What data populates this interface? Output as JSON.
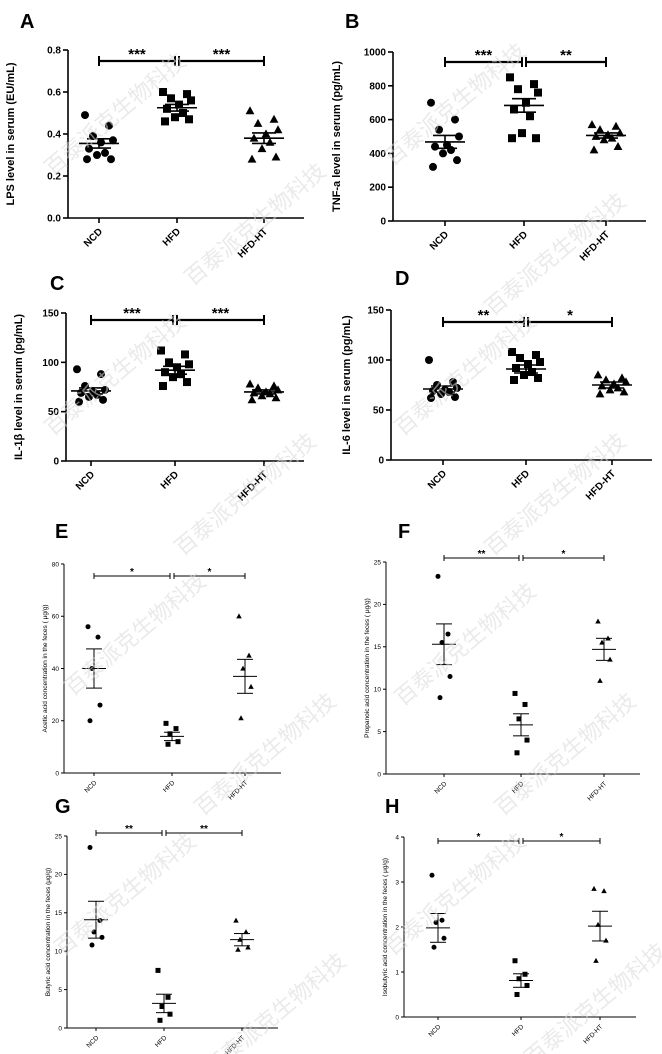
{
  "figure": {
    "watermark": "百泰派克生物科技"
  },
  "colors": {
    "ink": "#000000",
    "watermark": "#d8d8d8"
  },
  "chart_data": [
    {
      "panel": "A",
      "type": "scatter",
      "ylabel": "LPS level in serum (EU/mL)",
      "categories": [
        "NCD",
        "HFD",
        "HFD-HT"
      ],
      "ylim": [
        0,
        0.8
      ],
      "yticks": [
        0.0,
        0.2,
        0.4,
        0.6,
        0.8
      ],
      "ytick_labels": [
        "0.0",
        "0.2",
        "0.4",
        "0.6",
        "0.8"
      ],
      "markers": [
        "circle",
        "square",
        "triangle"
      ],
      "points": [
        [
          0.49,
          0.44,
          0.39,
          0.37,
          0.36,
          0.33,
          0.31,
          0.3,
          0.28,
          0.28
        ],
        [
          0.6,
          0.59,
          0.57,
          0.56,
          0.54,
          0.52,
          0.5,
          0.48,
          0.47,
          0.46
        ],
        [
          0.51,
          0.47,
          0.45,
          0.42,
          0.4,
          0.38,
          0.36,
          0.33,
          0.29,
          0.28
        ]
      ],
      "mean": [
        0.355,
        0.525,
        0.38
      ],
      "sem": [
        0.022,
        0.016,
        0.025
      ],
      "comparisons": [
        {
          "from": 0,
          "to": 1,
          "label": "***"
        },
        {
          "from": 1,
          "to": 2,
          "label": "***"
        }
      ]
    },
    {
      "panel": "B",
      "type": "scatter",
      "ylabel": "TNF-a level in serum (pg/mL)",
      "categories": [
        "NCD",
        "HFD",
        "HFD-HT"
      ],
      "ylim": [
        0,
        1000
      ],
      "yticks": [
        0,
        200,
        400,
        600,
        800,
        1000
      ],
      "ytick_labels": [
        "0",
        "200",
        "400",
        "600",
        "800",
        "1000"
      ],
      "markers": [
        "circle",
        "square",
        "triangle"
      ],
      "points": [
        [
          700,
          600,
          540,
          500,
          450,
          440,
          420,
          400,
          360,
          320
        ],
        [
          850,
          810,
          780,
          760,
          700,
          660,
          620,
          520,
          490,
          490
        ],
        [
          570,
          560,
          540,
          520,
          510,
          500,
          490,
          480,
          440,
          420
        ]
      ],
      "mean": [
        468,
        684,
        506
      ],
      "sem": [
        38,
        40,
        15
      ],
      "comparisons": [
        {
          "from": 0,
          "to": 1,
          "label": "***"
        },
        {
          "from": 1,
          "to": 2,
          "label": "**"
        }
      ]
    },
    {
      "panel": "C",
      "type": "scatter",
      "ylabel": "IL-1β level in serum (pg/mL)",
      "categories": [
        "NCD",
        "HFD",
        "HFD-HT"
      ],
      "ylim": [
        0,
        150
      ],
      "yticks": [
        0,
        50,
        100,
        150
      ],
      "ytick_labels": [
        "0",
        "50",
        "100",
        "150"
      ],
      "markers": [
        "circle",
        "square",
        "triangle"
      ],
      "points": [
        [
          93,
          88,
          76,
          72,
          71,
          69,
          67,
          65,
          62,
          60
        ],
        [
          112,
          108,
          100,
          98,
          95,
          90,
          88,
          85,
          80,
          76
        ],
        [
          78,
          76,
          74,
          72,
          70,
          69,
          68,
          66,
          64,
          62
        ]
      ],
      "mean": [
        71,
        92,
        70
      ],
      "sem": [
        3,
        4,
        2
      ],
      "comparisons": [
        {
          "from": 0,
          "to": 1,
          "label": "***"
        },
        {
          "from": 1,
          "to": 2,
          "label": "***"
        }
      ]
    },
    {
      "panel": "D",
      "type": "scatter",
      "ylabel": "IL-6 level in serum (pg/mL)",
      "categories": [
        "NCD",
        "HFD",
        "HFD-HT"
      ],
      "ylim": [
        0,
        150
      ],
      "yticks": [
        0,
        50,
        100,
        150
      ],
      "ytick_labels": [
        "0",
        "50",
        "100",
        "150"
      ],
      "markers": [
        "circle",
        "square",
        "triangle"
      ],
      "points": [
        [
          100,
          78,
          75,
          72,
          70,
          69,
          68,
          66,
          63,
          62
        ],
        [
          108,
          105,
          102,
          98,
          96,
          92,
          88,
          85,
          82,
          80
        ],
        [
          85,
          82,
          80,
          78,
          76,
          74,
          72,
          70,
          68,
          66
        ]
      ],
      "mean": [
        71,
        91,
        75
      ],
      "sem": [
        3,
        4,
        3
      ],
      "comparisons": [
        {
          "from": 0,
          "to": 1,
          "label": "**"
        },
        {
          "from": 1,
          "to": 2,
          "label": "*"
        }
      ]
    },
    {
      "panel": "E",
      "type": "scatter",
      "ylabel": "Acetic acid concentration in the feces ( μg/g)",
      "categories": [
        "NCD",
        "HFD",
        "HFD-HT"
      ],
      "ylim": [
        0,
        80
      ],
      "yticks": [
        0,
        20,
        40,
        60,
        80
      ],
      "ytick_labels": [
        "0",
        "20",
        "40",
        "60",
        "80"
      ],
      "markers": [
        "circle",
        "square",
        "triangle"
      ],
      "points": [
        [
          56,
          52,
          40,
          26,
          20
        ],
        [
          19,
          17,
          15,
          12,
          11
        ],
        [
          60,
          45,
          40,
          33,
          21
        ]
      ],
      "mean": [
        40,
        14,
        37
      ],
      "sem": [
        7.5,
        1.6,
        6.5
      ],
      "comparisons": [
        {
          "from": 0,
          "to": 1,
          "label": "*"
        },
        {
          "from": 1,
          "to": 2,
          "label": "*"
        }
      ]
    },
    {
      "panel": "F",
      "type": "scatter",
      "ylabel": "Propanoic acid concentration in the feces ( μg/g)",
      "categories": [
        "NCD",
        "HFD",
        "HFD-HT"
      ],
      "ylim": [
        0,
        25
      ],
      "yticks": [
        0,
        5,
        10,
        15,
        20,
        25
      ],
      "ytick_labels": [
        "0",
        "5",
        "10",
        "15",
        "20",
        "25"
      ],
      "markers": [
        "circle",
        "square",
        "triangle"
      ],
      "points": [
        [
          23.3,
          16.5,
          15.5,
          11.5,
          9.0
        ],
        [
          9.5,
          8.2,
          6.5,
          4.0,
          2.5
        ],
        [
          18.0,
          16.0,
          15.5,
          13.5,
          11.0
        ]
      ],
      "mean": [
        15.3,
        5.8,
        14.7
      ],
      "sem": [
        2.4,
        1.3,
        1.3
      ],
      "comparisons": [
        {
          "from": 0,
          "to": 1,
          "label": "**"
        },
        {
          "from": 1,
          "to": 2,
          "label": "*"
        }
      ]
    },
    {
      "panel": "G",
      "type": "scatter",
      "ylabel": "Butyric acid concentration in the feces (μg/g)",
      "categories": [
        "NCD",
        "HFD",
        "HFD-HT"
      ],
      "ylim": [
        0,
        25
      ],
      "yticks": [
        0,
        5,
        10,
        15,
        20,
        25
      ],
      "ytick_labels": [
        "0",
        "5",
        "10",
        "15",
        "20",
        "25"
      ],
      "markers": [
        "circle",
        "square",
        "triangle"
      ],
      "points": [
        [
          23.5,
          14.0,
          12.5,
          11.8,
          10.8
        ],
        [
          7.5,
          4.0,
          2.8,
          1.8,
          1.0
        ],
        [
          14.0,
          12.5,
          11.5,
          10.5,
          10.2
        ]
      ],
      "mean": [
        14.1,
        3.2,
        11.5
      ],
      "sem": [
        2.4,
        1.2,
        0.8
      ],
      "comparisons": [
        {
          "from": 0,
          "to": 1,
          "label": "**"
        },
        {
          "from": 1,
          "to": 2,
          "label": "**"
        }
      ]
    },
    {
      "panel": "H",
      "type": "scatter",
      "ylabel": "Isobutyric acid concentration in the feces ( μg/g)",
      "categories": [
        "NCD",
        "HFD",
        "HFD-HT"
      ],
      "ylim": [
        0,
        4
      ],
      "yticks": [
        0,
        1,
        2,
        3,
        4
      ],
      "ytick_labels": [
        "0",
        "1",
        "2",
        "3",
        "4"
      ],
      "markers": [
        "circle",
        "square",
        "triangle"
      ],
      "points": [
        [
          3.15,
          2.15,
          2.1,
          1.75,
          1.55
        ],
        [
          1.25,
          0.95,
          0.85,
          0.7,
          0.5
        ],
        [
          2.85,
          2.8,
          2.05,
          1.7,
          1.25
        ]
      ],
      "mean": [
        1.98,
        0.81,
        2.02
      ],
      "sem": [
        0.32,
        0.15,
        0.33
      ],
      "comparisons": [
        {
          "from": 0,
          "to": 1,
          "label": "*"
        },
        {
          "from": 1,
          "to": 2,
          "label": "*"
        }
      ]
    }
  ]
}
